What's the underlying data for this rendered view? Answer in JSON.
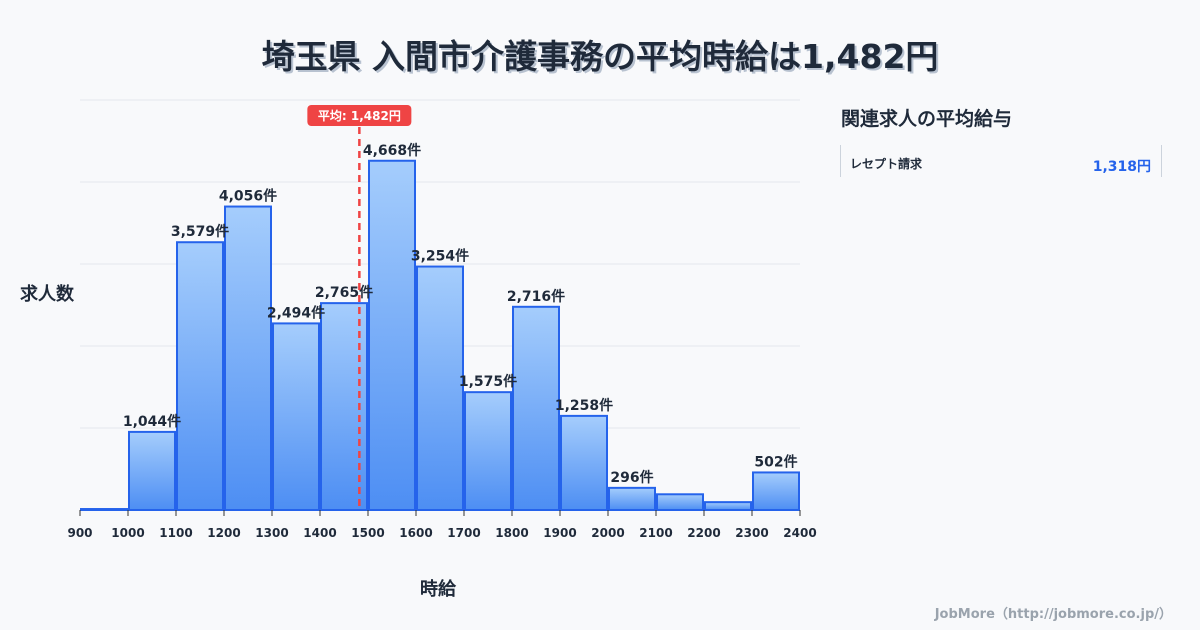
{
  "title": "埼玉県 入間市介護事務の平均時給は1,482円",
  "sidebar": {
    "title": "関連求人の平均給与",
    "items": [
      {
        "label": "レセプト請求",
        "value": "1,318円"
      }
    ]
  },
  "credit": "JobMore（http://jobmore.co.jp/）",
  "chart_data": {
    "type": "bar",
    "title": "埼玉県 入間市介護事務の平均時給は1,482円",
    "xlabel": "時給",
    "ylabel": "求人数",
    "bin_edges": [
      900,
      1000,
      1100,
      1200,
      1300,
      1400,
      1500,
      1600,
      1700,
      1800,
      1900,
      2000,
      2100,
      2200,
      2300,
      2400
    ],
    "x_tick_labels": [
      "900",
      "1000",
      "1100",
      "1200",
      "1300",
      "1400",
      "1500",
      "1600",
      "1700",
      "1800",
      "1900",
      "2000",
      "2100",
      "2200",
      "2300",
      "2400"
    ],
    "values": [
      13,
      1044,
      3579,
      4056,
      2494,
      2765,
      4668,
      3254,
      1575,
      2716,
      1258,
      296,
      210,
      105,
      502
    ],
    "data_labels": [
      "",
      "1,044件",
      "3,579件",
      "4,056件",
      "2,494件",
      "2,765件",
      "4,668件",
      "3,254件",
      "1,575件",
      "2,716件",
      "1,258件",
      "296件",
      "",
      "",
      "502件"
    ],
    "ylim": [
      0,
      5480
    ],
    "grid": true,
    "mean": {
      "value": 1482,
      "label": "平均: 1,482円"
    },
    "colors": {
      "bar_top": "#a5cdfc",
      "bar_bottom": "#4d8ef3",
      "bar_edge": "#2563eb",
      "mean_line": "#ef4444"
    }
  }
}
